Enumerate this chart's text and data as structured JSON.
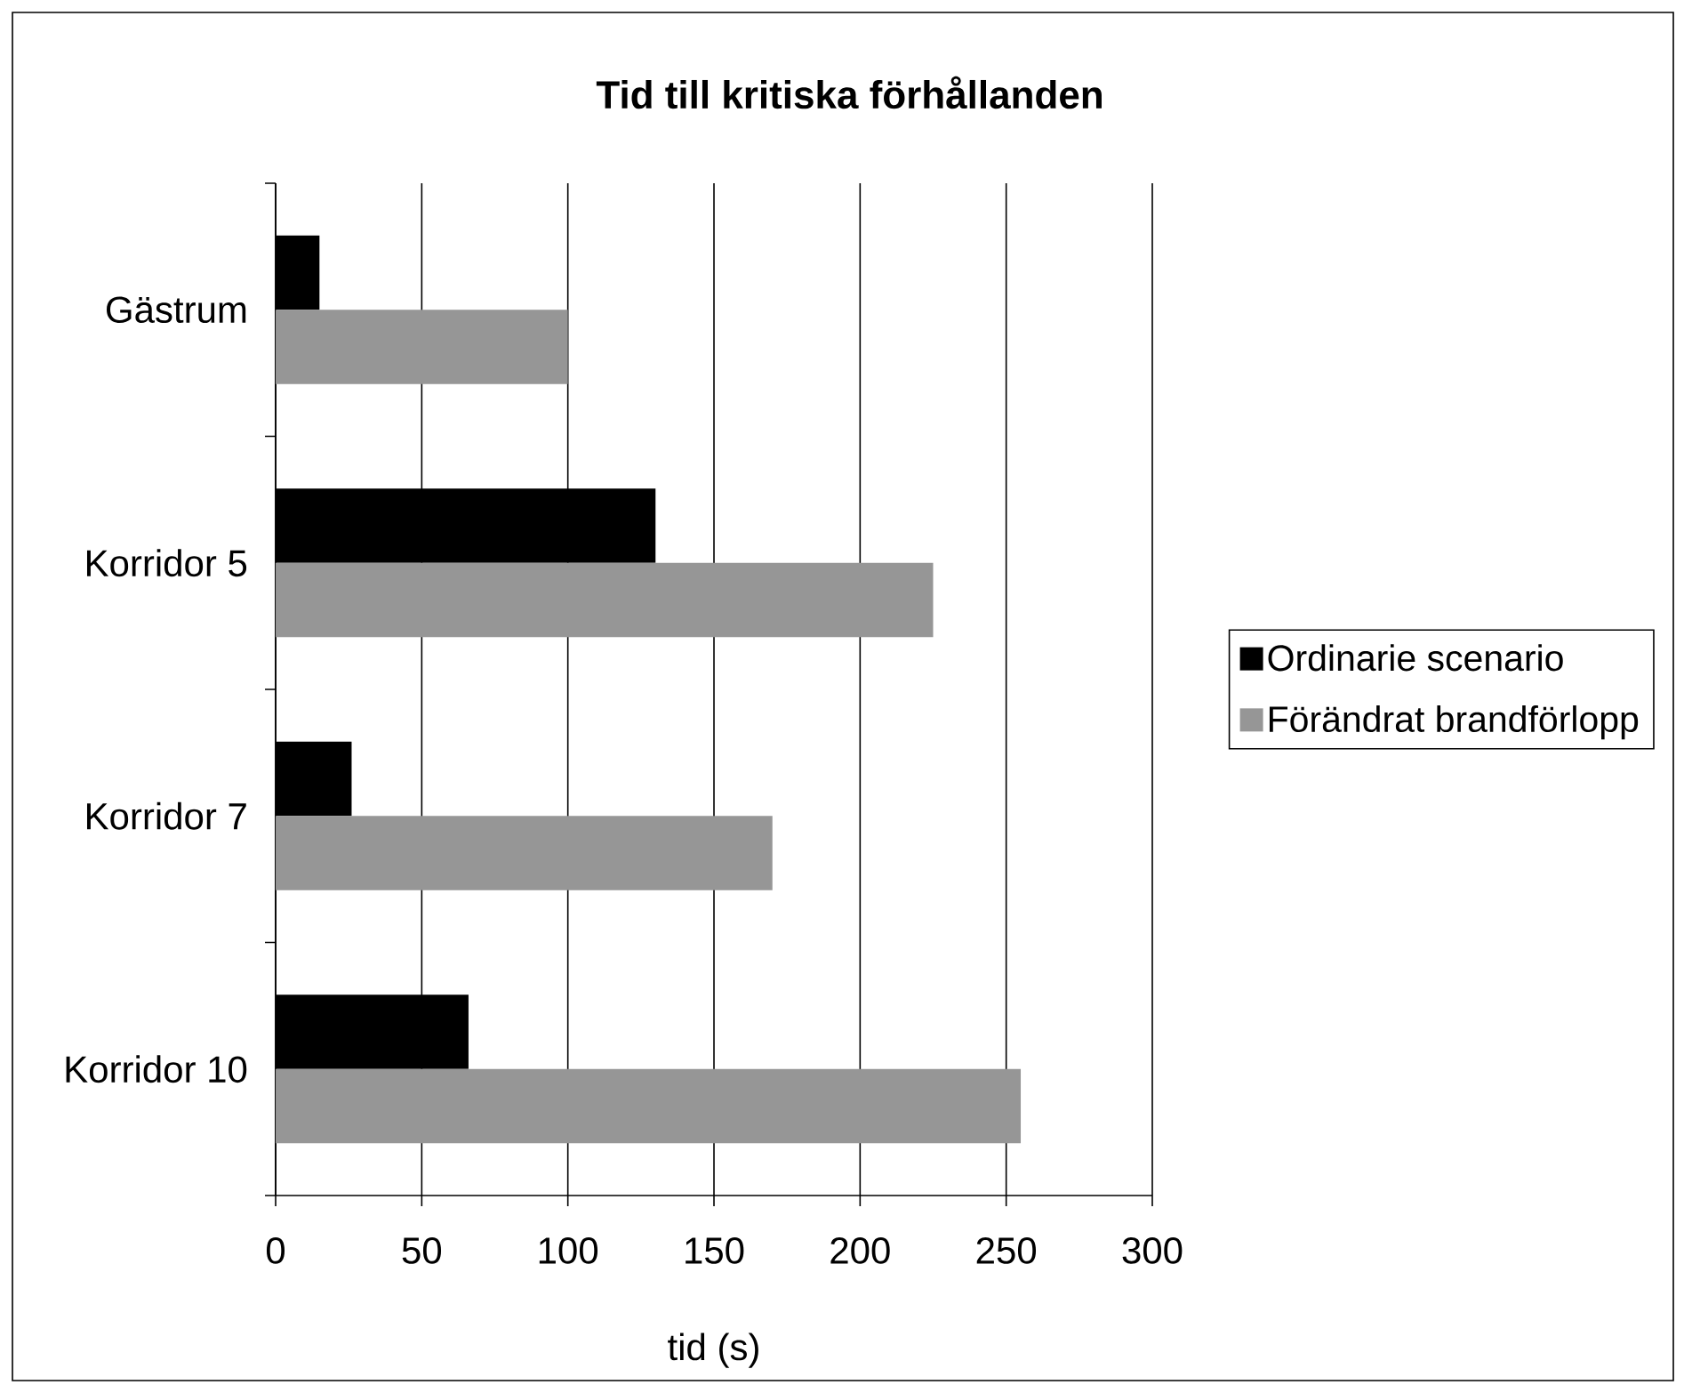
{
  "chart_data": {
    "type": "bar",
    "orientation": "horizontal",
    "title": "Tid till kritiska förhållanden",
    "xlabel": "tid (s)",
    "categories": [
      "Gästrum",
      "Korridor 5",
      "Korridor 7",
      "Korridor 10"
    ],
    "series": [
      {
        "name": "Ordinarie scenario",
        "color": "#000000",
        "values": [
          15,
          130,
          26,
          66
        ]
      },
      {
        "name": "Förändrat brandförlopp",
        "color": "#969696",
        "values": [
          100,
          225,
          170,
          255
        ]
      }
    ],
    "xlim": [
      0,
      300
    ],
    "xticks": [
      0,
      50,
      100,
      150,
      200,
      250,
      300
    ],
    "grid": "x",
    "legend": "right"
  }
}
